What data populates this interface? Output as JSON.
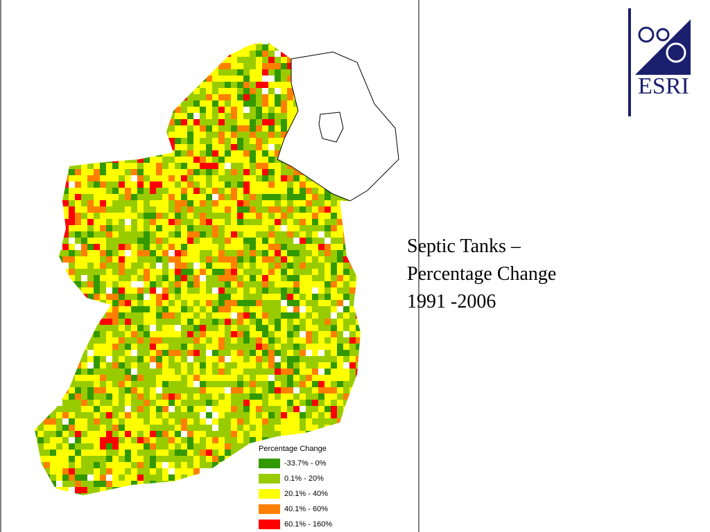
{
  "slide": {
    "title_lines": [
      "Septic Tanks –",
      "Percentage Change",
      "1991 -2006"
    ],
    "logo": "ESRI",
    "legend": {
      "title": "Percentage Change",
      "items": [
        {
          "label": "-33.7% - 0%",
          "color": "#339900"
        },
        {
          "label": "0.1% - 20%",
          "color": "#99cc00"
        },
        {
          "label": "20.1% - 40%",
          "color": "#ffff00"
        },
        {
          "label": "40.1% - 60%",
          "color": "#ff8000"
        },
        {
          "label": "60.1% - 160%",
          "color": "#ff0000"
        }
      ]
    }
  }
}
